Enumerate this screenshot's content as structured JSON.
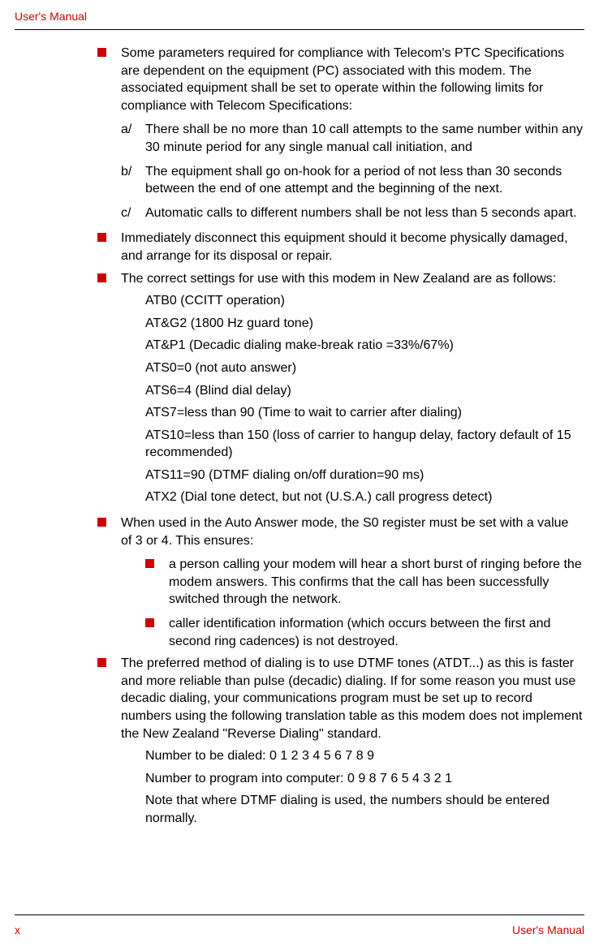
{
  "header": "User's Manual",
  "footer_left": "x",
  "footer_right": "User's Manual",
  "items": [
    {
      "main": "Some parameters required for compliance with Telecom's PTC Specifications are dependent on the equipment (PC) associated with this modem. The associated equipment shall be set to operate within the following limits for compliance with Telecom Specifications:",
      "subs": [
        {
          "label": "a/",
          "text": "There shall be no more than 10 call attempts to the same number within any 30 minute period for any single manual call initiation, and"
        },
        {
          "label": "b/",
          "text": "The equipment shall go on-hook for a period of not less than 30 seconds between the end of one attempt and the beginning of the next."
        },
        {
          "label": "c/",
          "text": "Automatic calls to different numbers shall be not less than 5 seconds apart."
        }
      ]
    },
    {
      "main": "Immediately disconnect this equipment should it become physically damaged, and arrange for its disposal or repair."
    },
    {
      "main": "The correct settings for use with this modem in New Zealand are as follows:",
      "settings": [
        "ATB0 (CCITT operation)",
        "AT&G2 (1800 Hz guard tone)",
        "AT&P1 (Decadic dialing make-break ratio =33%/67%)",
        "ATS0=0 (not auto answer)",
        "ATS6=4 (Blind dial delay)",
        "ATS7=less than 90 (Time to wait to carrier after dialing)",
        "ATS10=less than 150 (loss of carrier to hangup delay, factory default of 15 recommended)",
        "ATS11=90 (DTMF dialing on/off duration=90 ms)",
        "ATX2 (Dial tone detect, but not (U.S.A.) call progress detect)"
      ]
    },
    {
      "main": "When used in the Auto Answer mode, the S0 register must be set with a value of 3 or 4. This ensures:",
      "nested": [
        "a person calling your modem will hear a short burst of ringing before the modem answers. This confirms that the call has been successfully switched through the network.",
        "caller identification information (which occurs between the first and second ring cadences) is not destroyed."
      ]
    },
    {
      "main": "The preferred method of dialing is to use DTMF tones (ATDT...) as this is faster and more reliable than pulse (decadic) dialing. If for some reason you must use decadic dialing, your communications program must be set up to record numbers using the following translation table as this modem does not implement the New Zealand \"Reverse Dialing\" standard.",
      "settings": [
        "Number to be dialed: 0 1 2 3 4 5 6 7 8 9",
        "Number to program into computer: 0 9 8 7 6 5 4 3 2 1",
        "Note that where DTMF dialing is used, the numbers should be entered normally."
      ]
    }
  ]
}
